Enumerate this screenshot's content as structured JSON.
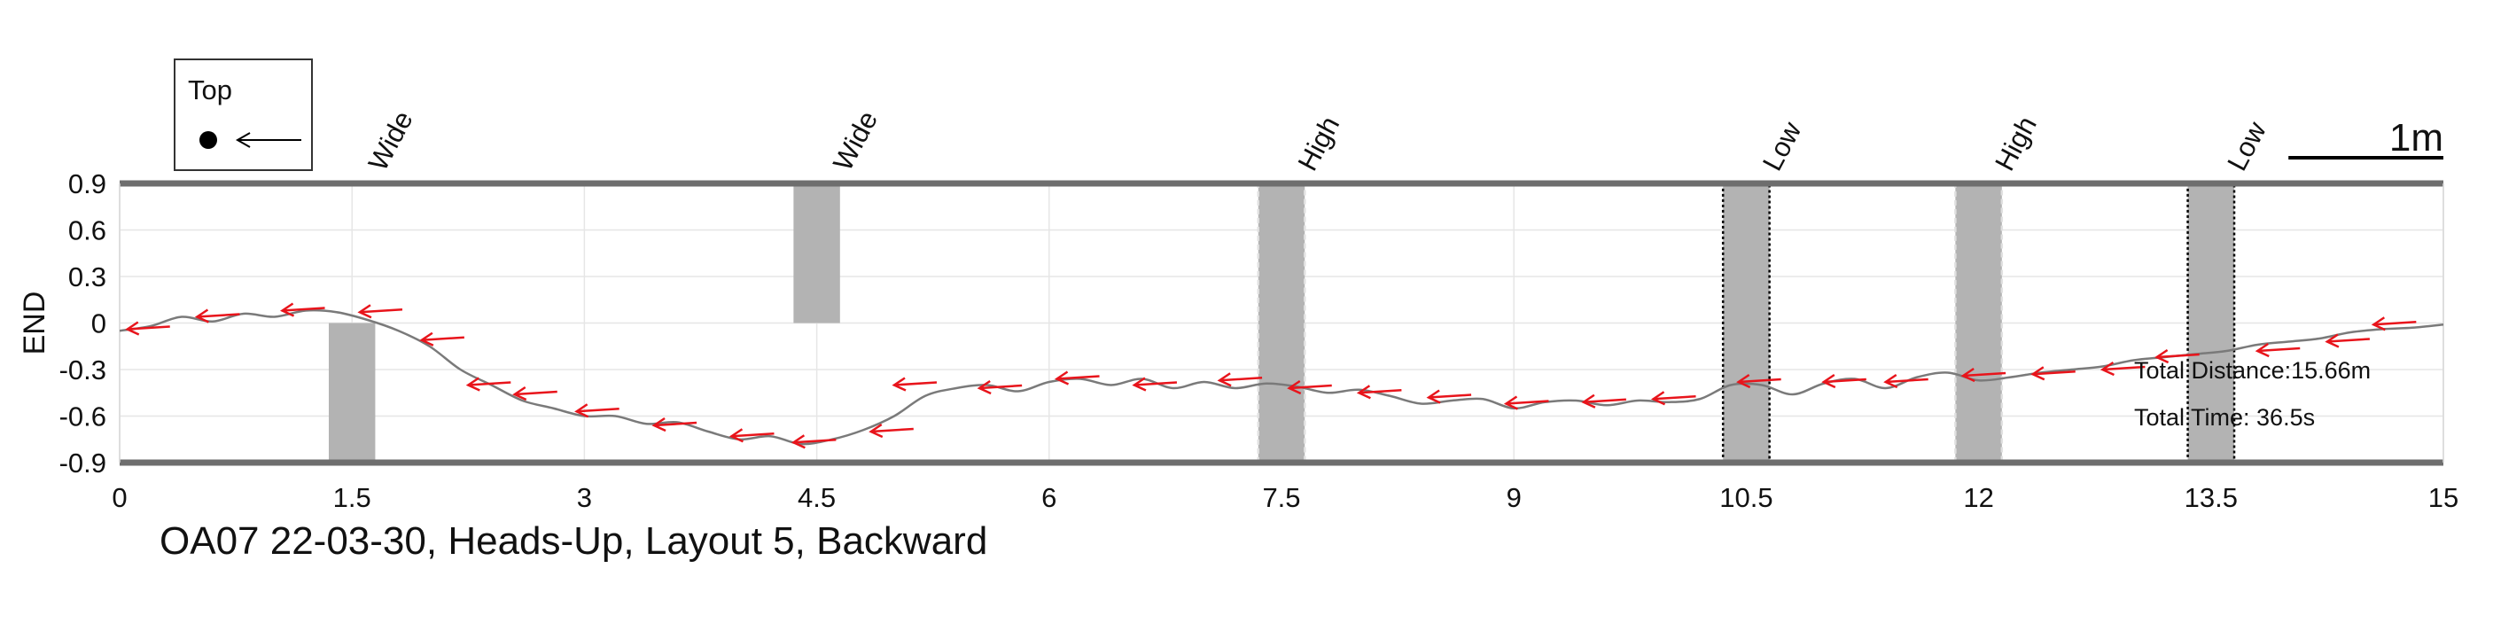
{
  "chart_data": {
    "type": "line",
    "title": "OA07 22-03-30, Heads-Up, Layout 5, Backward",
    "xlabel": "",
    "ylabel": "END",
    "xlim": [
      0,
      15
    ],
    "ylim": [
      -0.9,
      0.9
    ],
    "x_ticks": [
      0,
      1.5,
      3,
      4.5,
      6,
      7.5,
      9,
      10.5,
      12,
      13.5,
      15
    ],
    "x_tick_labels": [
      "0",
      "1.5",
      "3",
      "4.5",
      "6",
      "7.5",
      "9",
      "10.5",
      "12",
      "13.5",
      "15"
    ],
    "y_ticks": [
      0.9,
      0.6,
      0.3,
      0,
      -0.3,
      -0.6,
      -0.9
    ],
    "y_tick_labels": [
      "0.9",
      "0.6",
      "0.3",
      "0",
      "-0.3",
      "-0.6",
      "-0.9"
    ],
    "grid": true,
    "trajectory_color": "#7a7a7a",
    "arrow_color": "#e8141b",
    "obstacle_color": "#b3b3b3",
    "trajectory": {
      "x": [
        15,
        14.8,
        14.6,
        14.4,
        14.2,
        14.0,
        13.8,
        13.6,
        13.4,
        13.2,
        13.0,
        12.8,
        12.6,
        12.4,
        12.2,
        12.0,
        11.8,
        11.6,
        11.4,
        11.2,
        11.0,
        10.8,
        10.6,
        10.4,
        10.2,
        10.0,
        9.8,
        9.6,
        9.4,
        9.2,
        9.0,
        8.8,
        8.6,
        8.4,
        8.2,
        8.0,
        7.8,
        7.6,
        7.4,
        7.2,
        7.0,
        6.8,
        6.6,
        6.4,
        6.2,
        6.0,
        5.8,
        5.6,
        5.4,
        5.2,
        5.0,
        4.8,
        4.6,
        4.4,
        4.2,
        4.0,
        3.8,
        3.6,
        3.4,
        3.2,
        3.0,
        2.8,
        2.6,
        2.4,
        2.2,
        2.0,
        1.8,
        1.6,
        1.4,
        1.2,
        1.0,
        0.8,
        0.6,
        0.4,
        0.2,
        0
      ],
      "y": [
        -0.01,
        -0.03,
        -0.04,
        -0.06,
        -0.1,
        -0.12,
        -0.14,
        -0.18,
        -0.2,
        -0.22,
        -0.24,
        -0.28,
        -0.3,
        -0.32,
        -0.35,
        -0.37,
        -0.32,
        -0.35,
        -0.42,
        -0.36,
        -0.39,
        -0.46,
        -0.4,
        -0.4,
        -0.49,
        -0.51,
        -0.5,
        -0.53,
        -0.5,
        -0.51,
        -0.55,
        -0.49,
        -0.5,
        -0.52,
        -0.47,
        -0.43,
        -0.45,
        -0.41,
        -0.39,
        -0.42,
        -0.38,
        -0.42,
        -0.36,
        -0.4,
        -0.36,
        -0.38,
        -0.44,
        -0.4,
        -0.42,
        -0.47,
        -0.6,
        -0.69,
        -0.75,
        -0.78,
        -0.73,
        -0.75,
        -0.7,
        -0.64,
        -0.65,
        -0.6,
        -0.6,
        -0.55,
        -0.5,
        -0.4,
        -0.3,
        -0.15,
        -0.05,
        0.02,
        0.07,
        0.08,
        0.04,
        0.06,
        0.01,
        0.04,
        -0.02,
        -0.05
      ]
    },
    "direction_arrows": [
      {
        "x": 14.55,
        "y": -0.01
      },
      {
        "x": 14.25,
        "y": -0.12
      },
      {
        "x": 13.8,
        "y": -0.18
      },
      {
        "x": 13.15,
        "y": -0.22
      },
      {
        "x": 12.8,
        "y": -0.3
      },
      {
        "x": 12.35,
        "y": -0.33
      },
      {
        "x": 11.9,
        "y": -0.34
      },
      {
        "x": 11.4,
        "y": -0.38
      },
      {
        "x": 11.0,
        "y": -0.38
      },
      {
        "x": 10.45,
        "y": -0.38
      },
      {
        "x": 9.9,
        "y": -0.49
      },
      {
        "x": 9.45,
        "y": -0.51
      },
      {
        "x": 8.95,
        "y": -0.52
      },
      {
        "x": 8.45,
        "y": -0.48
      },
      {
        "x": 8.0,
        "y": -0.45
      },
      {
        "x": 7.55,
        "y": -0.42
      },
      {
        "x": 7.1,
        "y": -0.37
      },
      {
        "x": 6.55,
        "y": -0.4
      },
      {
        "x": 6.05,
        "y": -0.36
      },
      {
        "x": 5.55,
        "y": -0.42
      },
      {
        "x": 5.0,
        "y": -0.4
      },
      {
        "x": 4.85,
        "y": -0.7
      },
      {
        "x": 4.35,
        "y": -0.77
      },
      {
        "x": 3.95,
        "y": -0.73
      },
      {
        "x": 3.45,
        "y": -0.66
      },
      {
        "x": 2.95,
        "y": -0.57
      },
      {
        "x": 2.55,
        "y": -0.46
      },
      {
        "x": 2.25,
        "y": -0.4
      },
      {
        "x": 1.95,
        "y": -0.11
      },
      {
        "x": 1.55,
        "y": 0.07
      },
      {
        "x": 1.05,
        "y": 0.08
      },
      {
        "x": 0.5,
        "y": 0.04
      },
      {
        "x": 0.05,
        "y": -0.04
      }
    ],
    "obstacles": [
      {
        "type": "Wide",
        "x": [
          1.35,
          1.65
        ],
        "y": [
          -0.9,
          0
        ],
        "label_x": 1.65
      },
      {
        "type": "Wide",
        "x": [
          4.35,
          4.65
        ],
        "y": [
          0,
          0.9
        ],
        "label_x": 4.65
      },
      {
        "type": "High",
        "x": [
          7.35,
          7.65
        ],
        "y": [
          -0.9,
          0.9
        ],
        "label_x": 7.65,
        "border": "dashed-light"
      },
      {
        "type": "Low",
        "x": [
          10.35,
          10.65
        ],
        "y": [
          -0.9,
          0.9
        ],
        "label_x": 10.65,
        "border": "dotted-dark"
      },
      {
        "type": "High",
        "x": [
          11.85,
          12.15
        ],
        "y": [
          -0.9,
          0.9
        ],
        "label_x": 12.15,
        "border": "dashed-light"
      },
      {
        "type": "Low",
        "x": [
          13.35,
          13.65
        ],
        "y": [
          -0.9,
          0.9
        ],
        "label_x": 13.65,
        "border": "dotted-dark"
      }
    ],
    "annotations": {
      "total_distance": "Total Distance:15.66m",
      "total_time": "Total Time: 36.5s"
    },
    "scale_bar": {
      "label": "1m",
      "length": 1.0
    },
    "legend": {
      "title": "Top",
      "placement": "top-left"
    }
  }
}
